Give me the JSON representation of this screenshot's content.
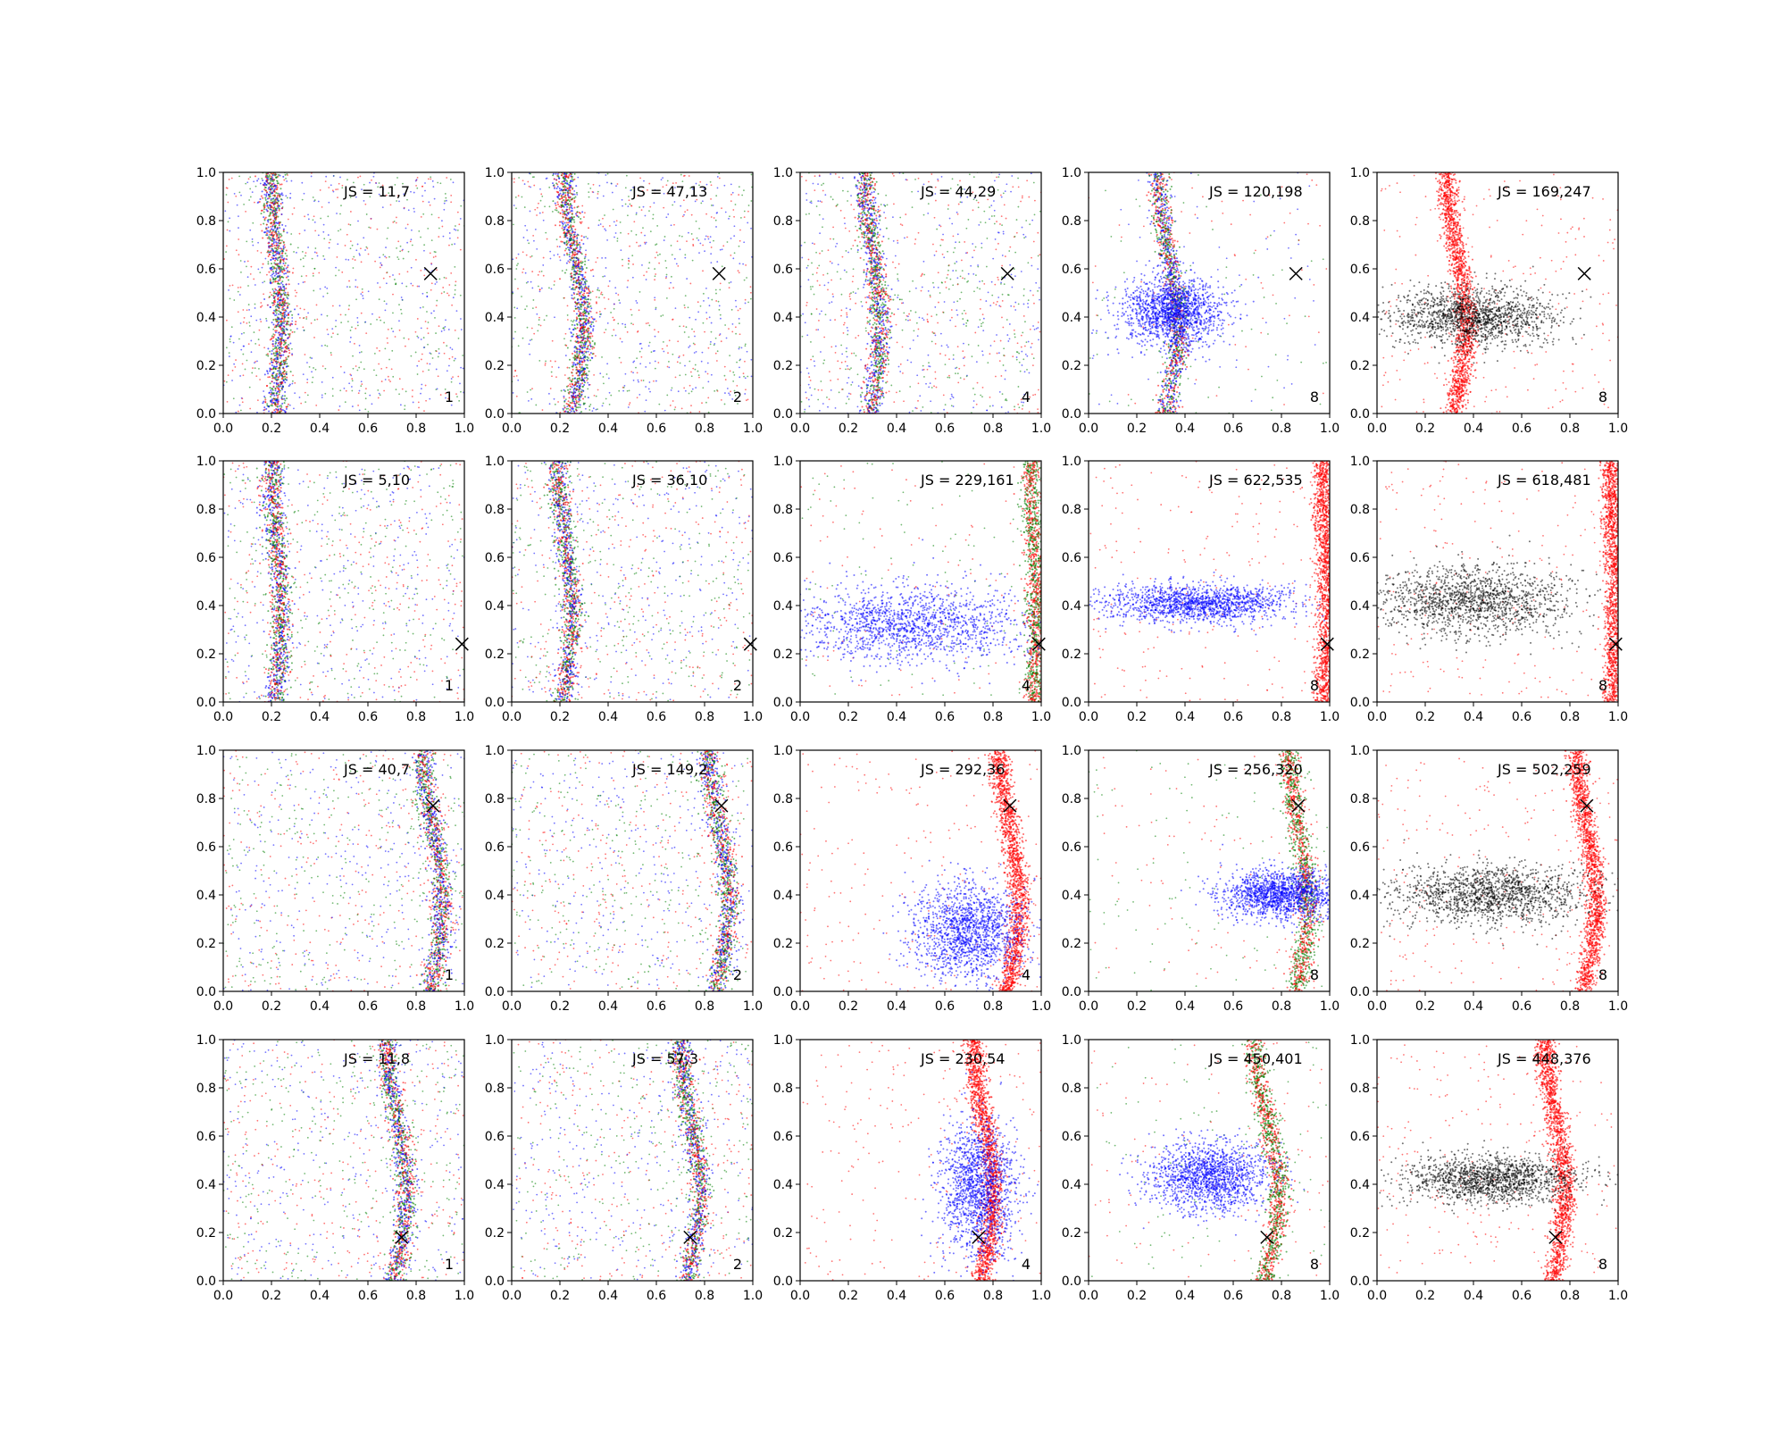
{
  "figure": {
    "rows": 4,
    "cols": 5
  },
  "axis_defaults": {
    "xlim": [
      0,
      1
    ],
    "ylim": [
      0,
      1
    ],
    "xticks": [
      "0.0",
      "0.2",
      "0.4",
      "0.6",
      "0.8",
      "1.0"
    ],
    "yticks": [
      "0.0",
      "0.2",
      "0.4",
      "0.6",
      "0.8",
      "1.0"
    ]
  },
  "colors": {
    "series_a": "#0000ff",
    "series_b": "#008000",
    "series_c": "#ff0000",
    "series_d": "#000000",
    "marker": "#000000"
  },
  "chart_data": [
    {
      "type": "scatter",
      "row": 1,
      "col": 1,
      "annotation": "JS = 11,7",
      "label": "1",
      "marker": [
        0.86,
        0.58
      ],
      "curve_center": 0.22,
      "curve_amp": 0.02,
      "palette": [
        "series_a",
        "series_b",
        "series_c"
      ],
      "blob": null
    },
    {
      "type": "scatter",
      "row": 1,
      "col": 2,
      "annotation": "JS = 47,13",
      "label": "2",
      "marker": [
        0.86,
        0.58
      ],
      "curve_center": 0.26,
      "curve_amp": 0.04,
      "palette": [
        "series_a",
        "series_b",
        "series_c"
      ],
      "blob": null
    },
    {
      "type": "scatter",
      "row": 1,
      "col": 3,
      "annotation": "JS = 44,29",
      "label": "4",
      "marker": [
        0.86,
        0.58
      ],
      "curve_center": 0.3,
      "curve_amp": 0.03,
      "palette": [
        "series_a",
        "series_b",
        "series_c"
      ],
      "blob": null
    },
    {
      "type": "scatter",
      "row": 1,
      "col": 4,
      "annotation": "JS = 120,198",
      "label": "8",
      "marker": [
        0.86,
        0.58
      ],
      "curve_center": 0.33,
      "curve_amp": 0.04,
      "palette": [
        "series_a",
        "series_b",
        "series_c"
      ],
      "blob": {
        "series": "series_a",
        "cx": 0.35,
        "cy": 0.42,
        "sx": 0.1,
        "sy": 0.07
      }
    },
    {
      "type": "scatter",
      "row": 1,
      "col": 5,
      "annotation": "JS = 169,247",
      "label": "8",
      "marker": [
        0.86,
        0.58
      ],
      "curve_center": 0.33,
      "curve_amp": 0.04,
      "palette": [
        "series_c"
      ],
      "blob": {
        "series": "series_d",
        "cx": 0.4,
        "cy": 0.4,
        "sx": 0.17,
        "sy": 0.06
      }
    },
    {
      "type": "scatter",
      "row": 2,
      "col": 1,
      "annotation": "JS = 5,10",
      "label": "1",
      "marker": [
        0.99,
        0.24
      ],
      "curve_center": 0.22,
      "curve_amp": 0.02,
      "palette": [
        "series_a",
        "series_b",
        "series_c"
      ],
      "blob": null
    },
    {
      "type": "scatter",
      "row": 2,
      "col": 2,
      "annotation": "JS = 36,10",
      "label": "2",
      "marker": [
        0.99,
        0.24
      ],
      "curve_center": 0.22,
      "curve_amp": 0.03,
      "palette": [
        "series_a",
        "series_b",
        "series_c"
      ],
      "blob": null
    },
    {
      "type": "scatter",
      "row": 2,
      "col": 3,
      "annotation": "JS = 229,161",
      "label": "4",
      "marker": [
        0.99,
        0.24
      ],
      "curve_center": 0.97,
      "curve_amp": 0.01,
      "palette": [
        "series_c",
        "series_b"
      ],
      "blob": {
        "series": "series_a",
        "cx": 0.45,
        "cy": 0.32,
        "sx": 0.25,
        "sy": 0.08
      }
    },
    {
      "type": "scatter",
      "row": 2,
      "col": 4,
      "annotation": "JS = 622,535",
      "label": "8",
      "marker": [
        0.99,
        0.24
      ],
      "curve_center": 0.98,
      "curve_amp": 0.01,
      "palette": [
        "series_c"
      ],
      "blob": {
        "series": "series_a",
        "cx": 0.45,
        "cy": 0.41,
        "sx": 0.2,
        "sy": 0.04
      }
    },
    {
      "type": "scatter",
      "row": 2,
      "col": 5,
      "annotation": "JS = 618,481",
      "label": "8",
      "marker": [
        0.99,
        0.24
      ],
      "curve_center": 0.98,
      "curve_amp": 0.01,
      "palette": [
        "series_c"
      ],
      "blob": {
        "series": "series_d",
        "cx": 0.4,
        "cy": 0.42,
        "sx": 0.2,
        "sy": 0.07
      }
    },
    {
      "type": "scatter",
      "row": 3,
      "col": 1,
      "annotation": "JS = 40,7",
      "label": "1",
      "marker": [
        0.87,
        0.77
      ],
      "curve_center": 0.87,
      "curve_amp": 0.04,
      "palette": [
        "series_a",
        "series_b",
        "series_c"
      ],
      "blob": null
    },
    {
      "type": "scatter",
      "row": 3,
      "col": 2,
      "annotation": "JS = 149,2",
      "label": "2",
      "marker": [
        0.87,
        0.77
      ],
      "curve_center": 0.86,
      "curve_amp": 0.04,
      "palette": [
        "series_a",
        "series_b",
        "series_c"
      ],
      "blob": null
    },
    {
      "type": "scatter",
      "row": 3,
      "col": 3,
      "annotation": "JS = 292,36",
      "label": "4",
      "marker": [
        0.87,
        0.77
      ],
      "curve_center": 0.87,
      "curve_amp": 0.04,
      "palette": [
        "series_c"
      ],
      "blob": {
        "series": "series_a",
        "cx": 0.7,
        "cy": 0.25,
        "sx": 0.12,
        "sy": 0.1
      }
    },
    {
      "type": "scatter",
      "row": 3,
      "col": 4,
      "annotation": "JS = 256,320",
      "label": "8",
      "marker": [
        0.87,
        0.77
      ],
      "curve_center": 0.87,
      "curve_amp": 0.04,
      "palette": [
        "series_b",
        "series_c"
      ],
      "blob": {
        "series": "series_a",
        "cx": 0.8,
        "cy": 0.4,
        "sx": 0.12,
        "sy": 0.05
      }
    },
    {
      "type": "scatter",
      "row": 3,
      "col": 5,
      "annotation": "JS = 502,259",
      "label": "8",
      "marker": [
        0.87,
        0.77
      ],
      "curve_center": 0.87,
      "curve_amp": 0.04,
      "palette": [
        "series_c"
      ],
      "blob": {
        "series": "series_d",
        "cx": 0.48,
        "cy": 0.4,
        "sx": 0.2,
        "sy": 0.06
      }
    },
    {
      "type": "scatter",
      "row": 4,
      "col": 1,
      "annotation": "JS = 11,8",
      "label": "1",
      "marker": [
        0.74,
        0.18
      ],
      "curve_center": 0.72,
      "curve_amp": 0.04,
      "palette": [
        "series_a",
        "series_b",
        "series_c"
      ],
      "blob": null
    },
    {
      "type": "scatter",
      "row": 4,
      "col": 2,
      "annotation": "JS = 57,3",
      "label": "2",
      "marker": [
        0.74,
        0.18
      ],
      "curve_center": 0.74,
      "curve_amp": 0.04,
      "palette": [
        "series_a",
        "series_b",
        "series_c"
      ],
      "blob": null
    },
    {
      "type": "scatter",
      "row": 4,
      "col": 3,
      "annotation": "JS = 230,54",
      "label": "4",
      "marker": [
        0.74,
        0.18
      ],
      "curve_center": 0.76,
      "curve_amp": 0.04,
      "palette": [
        "series_c"
      ],
      "blob": {
        "series": "series_a",
        "cx": 0.74,
        "cy": 0.38,
        "sx": 0.08,
        "sy": 0.15
      }
    },
    {
      "type": "scatter",
      "row": 4,
      "col": 4,
      "annotation": "JS = 450,401",
      "label": "8",
      "marker": [
        0.74,
        0.18
      ],
      "curve_center": 0.74,
      "curve_amp": 0.05,
      "palette": [
        "series_b",
        "series_c"
      ],
      "blob": {
        "series": "series_a",
        "cx": 0.5,
        "cy": 0.43,
        "sx": 0.12,
        "sy": 0.07
      }
    },
    {
      "type": "scatter",
      "row": 4,
      "col": 5,
      "annotation": "JS = 448,376",
      "label": "8",
      "marker": [
        0.74,
        0.18
      ],
      "curve_center": 0.74,
      "curve_amp": 0.04,
      "palette": [
        "series_c"
      ],
      "blob": {
        "series": "series_d",
        "cx": 0.48,
        "cy": 0.42,
        "sx": 0.18,
        "sy": 0.05
      }
    }
  ]
}
